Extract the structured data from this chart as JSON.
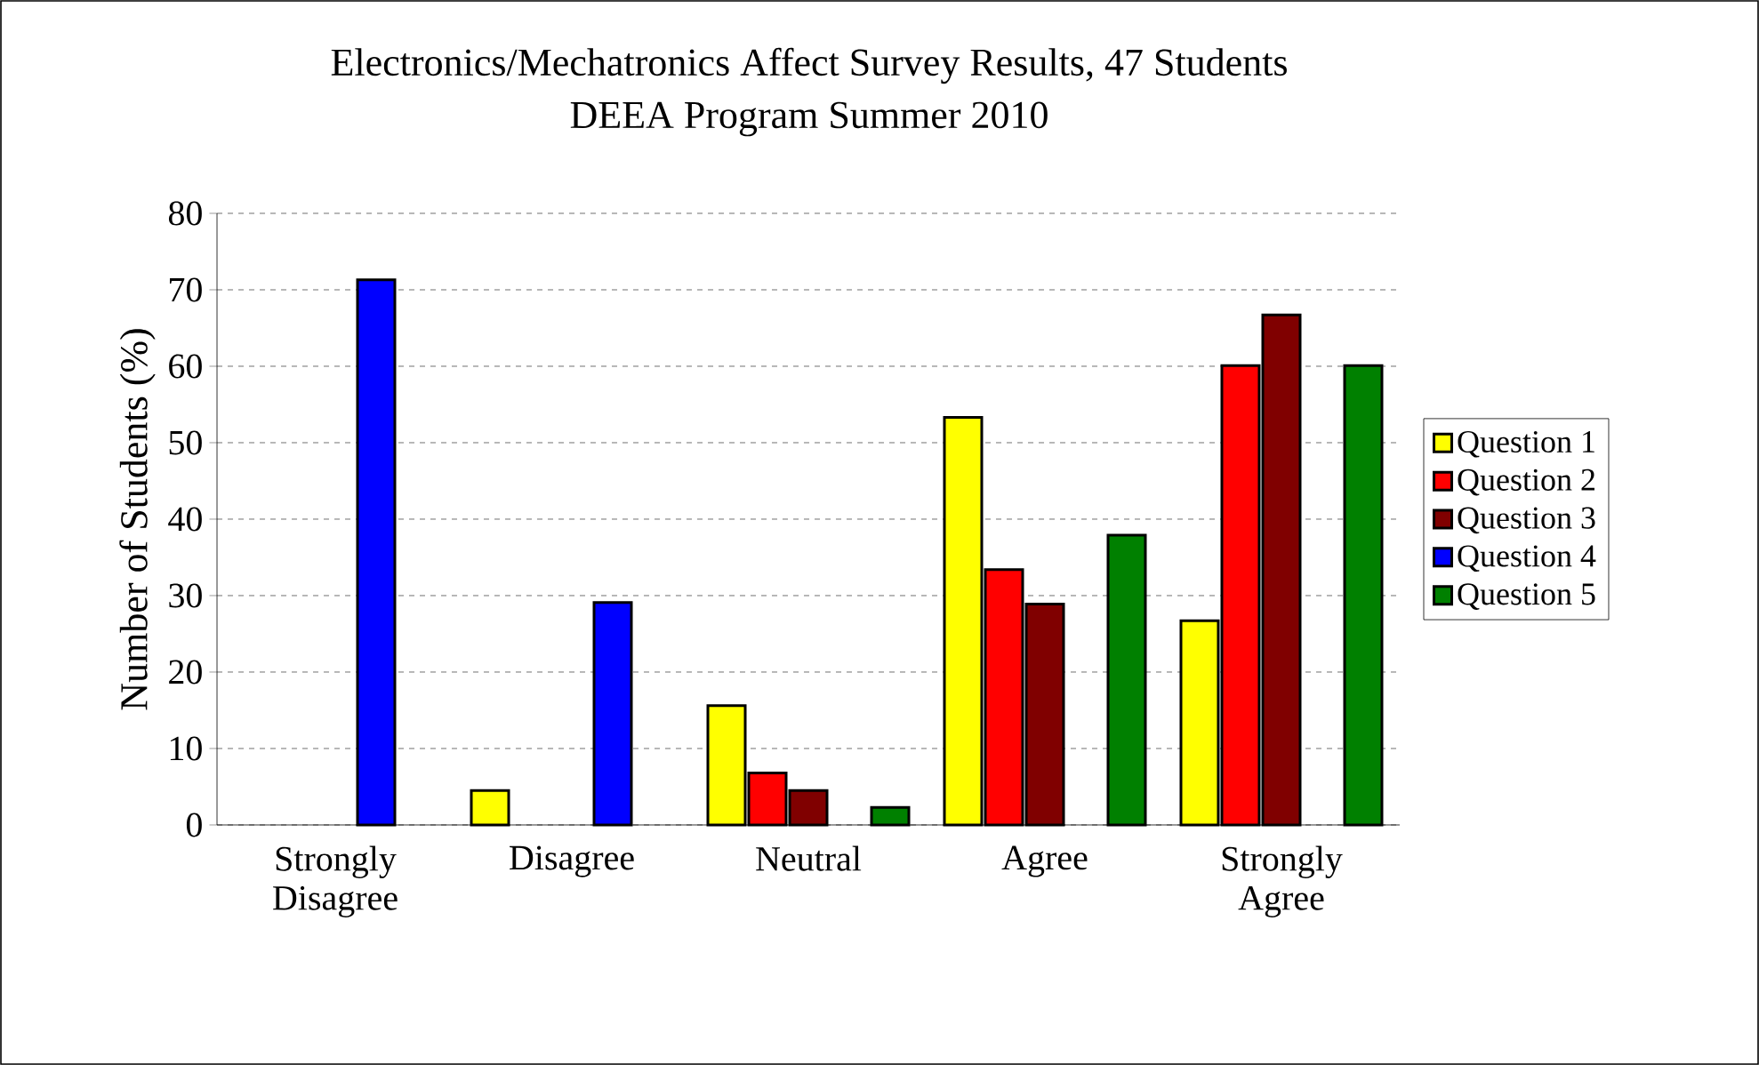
{
  "chart_data": {
    "type": "bar",
    "title": "Electronics/Mechatronics Affect Survey Results, 47 Students",
    "subtitle": "DEEA Program Summer 2010",
    "ylabel": "Number of Students (%)",
    "categories": [
      "Strongly Disagree",
      "Disagree",
      "Neutral",
      "Agree",
      "Strongly Agree"
    ],
    "series": [
      {
        "name": "Question 1",
        "color": "#ffff00",
        "values": [
          null,
          4.5,
          15.6,
          53.3,
          26.7
        ]
      },
      {
        "name": "Question 2",
        "color": "#ff0000",
        "values": [
          null,
          null,
          6.8,
          33.4,
          60.1
        ]
      },
      {
        "name": "Question 3",
        "color": "#800000",
        "values": [
          null,
          null,
          4.5,
          28.9,
          66.7
        ]
      },
      {
        "name": "Question 4",
        "color": "#0000ff",
        "values": [
          71.3,
          29.1,
          null,
          null,
          null
        ]
      },
      {
        "name": "Question 5",
        "color": "#008000",
        "values": [
          null,
          null,
          2.3,
          37.9,
          60.1
        ]
      }
    ],
    "ylim": [
      0,
      80
    ],
    "yticks": [
      0,
      10,
      20,
      30,
      40,
      50,
      60,
      70,
      80
    ],
    "grid": "y",
    "legend": "right"
  }
}
